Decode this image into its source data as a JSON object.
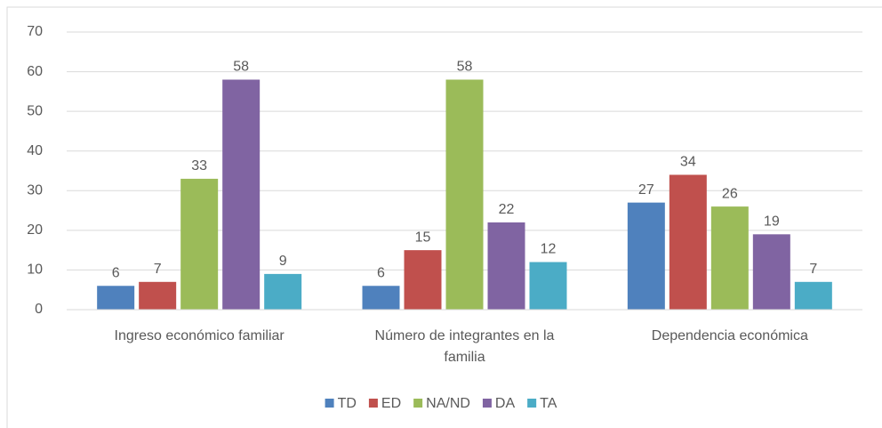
{
  "chart_data": {
    "type": "bar",
    "categories": [
      "Ingreso económico familiar",
      "Número de integrantes en la familia",
      "Dependencia económica"
    ],
    "series": [
      {
        "name": "TD",
        "color": "#4f81bd",
        "values": [
          6,
          6,
          27
        ]
      },
      {
        "name": "ED",
        "color": "#c0504d",
        "values": [
          7,
          15,
          34
        ]
      },
      {
        "name": "NA/ND",
        "color": "#9bbb59",
        "values": [
          33,
          58,
          26
        ]
      },
      {
        "name": "DA",
        "color": "#8064a2",
        "values": [
          58,
          22,
          19
        ]
      },
      {
        "name": "TA",
        "color": "#4bacc6",
        "values": [
          9,
          12,
          7
        ]
      }
    ],
    "ylim": [
      0,
      70
    ],
    "yticks": [
      0,
      10,
      20,
      30,
      40,
      50,
      60,
      70
    ],
    "grid": true,
    "legend": "bottom"
  }
}
